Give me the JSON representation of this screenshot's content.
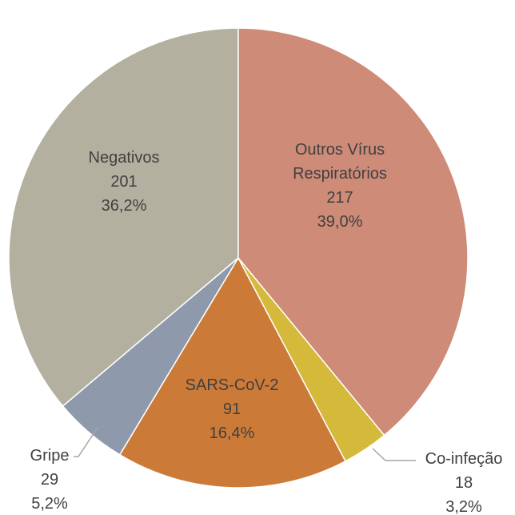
{
  "chart_data": {
    "type": "pie",
    "categories": [
      "Outros Vírus Respiratórios",
      "Co-infeção",
      "SARS-CoV-2",
      "Gripe",
      "Negativos"
    ],
    "values": [
      217,
      18,
      91,
      29,
      201
    ],
    "percentage_labels": [
      "39,0%",
      "3,2%",
      "16,4%",
      "5,2%",
      "36,2%"
    ],
    "colors": [
      "#cd8b78",
      "#d4b93a",
      "#cb7a38",
      "#8e9aab",
      "#b3b0a0"
    ]
  }
}
